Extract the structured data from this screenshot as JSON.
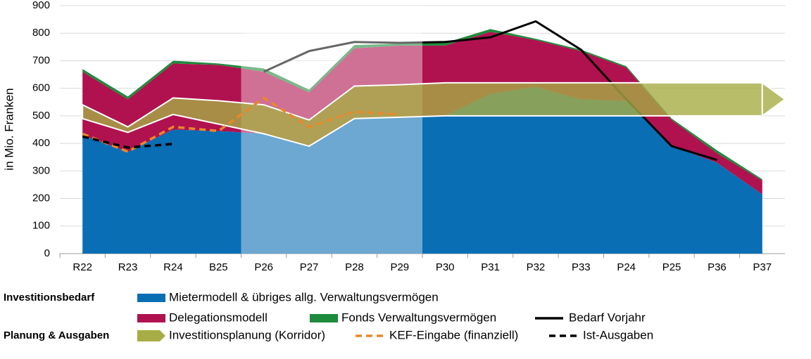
{
  "chart_data": {
    "type": "area",
    "y_label": "in Mio. Franken",
    "categories": [
      "R22",
      "R23",
      "R24",
      "B25",
      "P26",
      "P27",
      "P28",
      "P29",
      "P30",
      "P31",
      "P32",
      "P33",
      "P24",
      "P25",
      "P36",
      "P37"
    ],
    "ylim": [
      0,
      900
    ],
    "yticks": [
      0,
      100,
      200,
      300,
      400,
      500,
      600,
      700,
      800,
      900
    ],
    "grid": true,
    "highlight": [
      "P26",
      "P29"
    ],
    "legend_groups": [
      "Investitionsbedarf",
      "Planung & Ausgaben"
    ],
    "series": [
      {
        "name": "Mietermodell & übriges allg. Verwaltungsvermögen",
        "type": "area",
        "color": "#0a6eb4",
        "values": [
          430,
          370,
          450,
          445,
          435,
          390,
          490,
          495,
          500,
          580,
          605,
          560,
          555,
          390,
          330,
          215
        ]
      },
      {
        "name": "Delegationsmodell",
        "type": "area",
        "color": "#b0124f",
        "values": [
          230,
          190,
          240,
          240,
          225,
          195,
          255,
          260,
          255,
          225,
          170,
          175,
          120,
          95,
          35,
          50
        ]
      },
      {
        "name": "Fonds Verwaltungsvermögen",
        "type": "area",
        "color": "#1e8a3c",
        "values": [
          10,
          10,
          10,
          5,
          12,
          10,
          12,
          7,
          10,
          10,
          5,
          5,
          5,
          5,
          10,
          5
        ]
      },
      {
        "name": "Bedarf Vorjahr",
        "type": "line",
        "color": "#000000",
        "values": [
          null,
          null,
          null,
          null,
          660,
          735,
          768,
          765,
          768,
          785,
          843,
          740,
          560,
          390,
          340,
          null
        ]
      },
      {
        "name": "Investitionsplanung (Korridor)",
        "type": "band",
        "color": "#a6ad45",
        "lower": [
          490,
          440,
          505,
          470,
          435,
          390,
          490,
          495,
          500,
          500,
          500,
          500,
          500,
          500,
          500,
          500
        ],
        "upper": [
          540,
          460,
          565,
          555,
          540,
          485,
          608,
          613,
          620,
          620,
          620,
          620,
          620,
          620,
          620,
          620
        ]
      },
      {
        "name": "KEF-Eingabe (finanziell)",
        "type": "line",
        "dashed": true,
        "color": "#e8892a",
        "values": [
          435,
          370,
          460,
          445,
          565,
          460,
          515,
          505,
          null,
          null,
          null,
          null,
          null,
          null,
          null,
          null
        ]
      },
      {
        "name": "Ist-Ausgaben",
        "type": "line",
        "dashed": true,
        "color": "#000000",
        "values": [
          425,
          385,
          398,
          null,
          null,
          null,
          null,
          null,
          null,
          null,
          null,
          null,
          null,
          null,
          null,
          null
        ]
      }
    ]
  }
}
